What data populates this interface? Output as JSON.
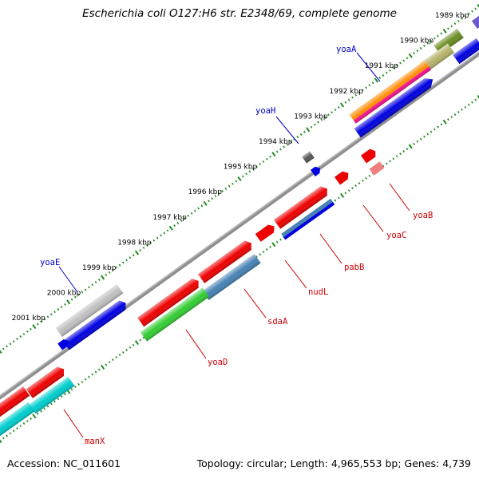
{
  "title": "Escherichia coli O127:H6 str. E2348/69, complete genome",
  "footer": {
    "accession": "Accession: NC_011601",
    "summary": "Topology: circular; Length: 4,965,553 bp; Genes: 4,739"
  },
  "colors": {
    "backbone": "#888888",
    "tick": "#1e8a1e",
    "label_red": "#cc0000",
    "label_blue": "#0000cc"
  },
  "scale": {
    "unit": "kbp",
    "marks": [
      {
        "kb": 1989,
        "label": "1989 kbp"
      },
      {
        "kb": 1990,
        "label": "1990 kbp"
      },
      {
        "kb": 1991,
        "label": "1991 kbp"
      },
      {
        "kb": 1992,
        "label": "1992 kbp"
      },
      {
        "kb": 1993,
        "label": "1993 kbp"
      },
      {
        "kb": 1994,
        "label": "1994 kbp"
      },
      {
        "kb": 1995,
        "label": "1995 kbp"
      },
      {
        "kb": 1996,
        "label": "1996 kbp"
      },
      {
        "kb": 1997,
        "label": "1997 kbp"
      },
      {
        "kb": 1998,
        "label": "1998 kbp"
      },
      {
        "kb": 1999,
        "label": "1999 kbp"
      },
      {
        "kb": 2000,
        "label": "2000 kbp"
      },
      {
        "kb": 2001,
        "label": "2001 kbp"
      }
    ]
  },
  "gene_labels": [
    {
      "name": "yoaA",
      "color": "blue"
    },
    {
      "name": "yoaH",
      "color": "blue"
    },
    {
      "name": "yoaE",
      "color": "blue"
    },
    {
      "name": "yoaB",
      "color": "red"
    },
    {
      "name": "yoaC",
      "color": "red"
    },
    {
      "name": "pabB",
      "color": "red"
    },
    {
      "name": "nudL",
      "color": "red"
    },
    {
      "name": "sdaA",
      "color": "red"
    },
    {
      "name": "yoaD",
      "color": "red"
    },
    {
      "name": "manX",
      "color": "red"
    }
  ]
}
